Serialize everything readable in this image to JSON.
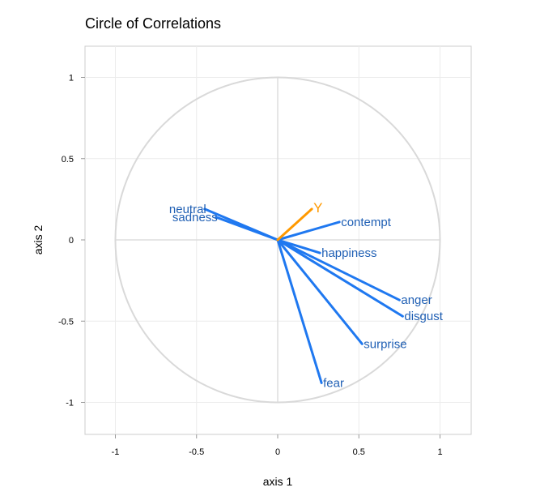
{
  "chart_data": {
    "type": "scatter",
    "title": "Circle of Correlations",
    "xlabel": "axis 1",
    "ylabel": "axis 2",
    "xlim": [
      -1.2,
      1.2
    ],
    "ylim": [
      -1.2,
      1.2
    ],
    "x_ticks": [
      -1,
      -0.5,
      0,
      0.5,
      1
    ],
    "y_ticks": [
      -1,
      -0.5,
      0,
      0.5,
      1
    ],
    "x_tick_labels": [
      "-1",
      "-0.5",
      "0",
      "0.5",
      "1"
    ],
    "y_tick_labels": [
      "-1",
      "-0.5",
      "0",
      "0.5",
      "1"
    ],
    "grid": true,
    "unit_circle": true,
    "variables": [
      {
        "label": "neutral",
        "x": -0.45,
        "y": 0.19
      },
      {
        "label": "sadness",
        "x": -0.38,
        "y": 0.14
      },
      {
        "label": "contempt",
        "x": 0.38,
        "y": 0.11
      },
      {
        "label": "happiness",
        "x": 0.26,
        "y": -0.08
      },
      {
        "label": "anger",
        "x": 0.75,
        "y": -0.37
      },
      {
        "label": "disgust",
        "x": 0.77,
        "y": -0.47
      },
      {
        "label": "surprise",
        "x": 0.52,
        "y": -0.64
      },
      {
        "label": "fear",
        "x": 0.27,
        "y": -0.88
      }
    ],
    "supplementary": [
      {
        "label": "Y",
        "x": 0.21,
        "y": 0.19
      }
    ],
    "colors": {
      "variables": "#1f78f0",
      "variable_labels": "#1f5fb4",
      "supplementary": "#ff9900",
      "circle": "#d9d9d9",
      "grid": "#ececec",
      "zero_lines": "#dddddd",
      "frame": "#cccccc"
    }
  }
}
